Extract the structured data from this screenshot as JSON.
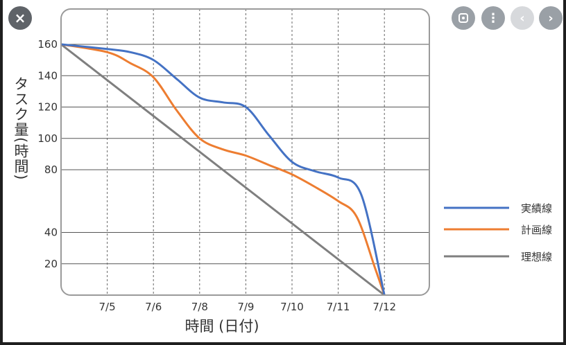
{
  "overlay": {
    "close_icon": "×",
    "more_icon": "⋮",
    "prev_icon": "‹",
    "next_icon": "›"
  },
  "chart_data": {
    "type": "line",
    "ylabel": "タスク量(時間)",
    "xlabel": "時間 (日付)",
    "x_ticks": [
      "7/5",
      "7/6",
      "7/8",
      "7/9",
      "7/10",
      "7/11",
      "7/12"
    ],
    "y_ticks": [
      20,
      40,
      80,
      100,
      120,
      140,
      160
    ],
    "grid": true,
    "legend_position": "right",
    "series": [
      {
        "name": "実績線",
        "color": "#4472c4",
        "points": [
          [
            0,
            160
          ],
          [
            1,
            157
          ],
          [
            1.5,
            155
          ],
          [
            2,
            150
          ],
          [
            2.5,
            138
          ],
          [
            3,
            126
          ],
          [
            3.5,
            123
          ],
          [
            4,
            120
          ],
          [
            4.5,
            102
          ],
          [
            5,
            85
          ],
          [
            5.5,
            79
          ],
          [
            6,
            75
          ],
          [
            6.5,
            64
          ],
          [
            7,
            0
          ]
        ]
      },
      {
        "name": "計画線",
        "color": "#ed7d31",
        "points": [
          [
            0,
            160
          ],
          [
            1,
            155
          ],
          [
            1.5,
            148
          ],
          [
            2,
            139
          ],
          [
            2.5,
            118
          ],
          [
            3,
            100
          ],
          [
            3.5,
            93
          ],
          [
            4,
            89
          ],
          [
            4.5,
            83
          ],
          [
            5,
            77
          ],
          [
            5.5,
            69
          ],
          [
            6,
            60
          ],
          [
            6.4,
            50
          ],
          [
            6.8,
            17
          ],
          [
            7,
            0
          ]
        ]
      },
      {
        "name": "理想線",
        "color": "#7f7f7f",
        "points": [
          [
            0,
            160
          ],
          [
            7,
            0
          ]
        ]
      }
    ]
  }
}
